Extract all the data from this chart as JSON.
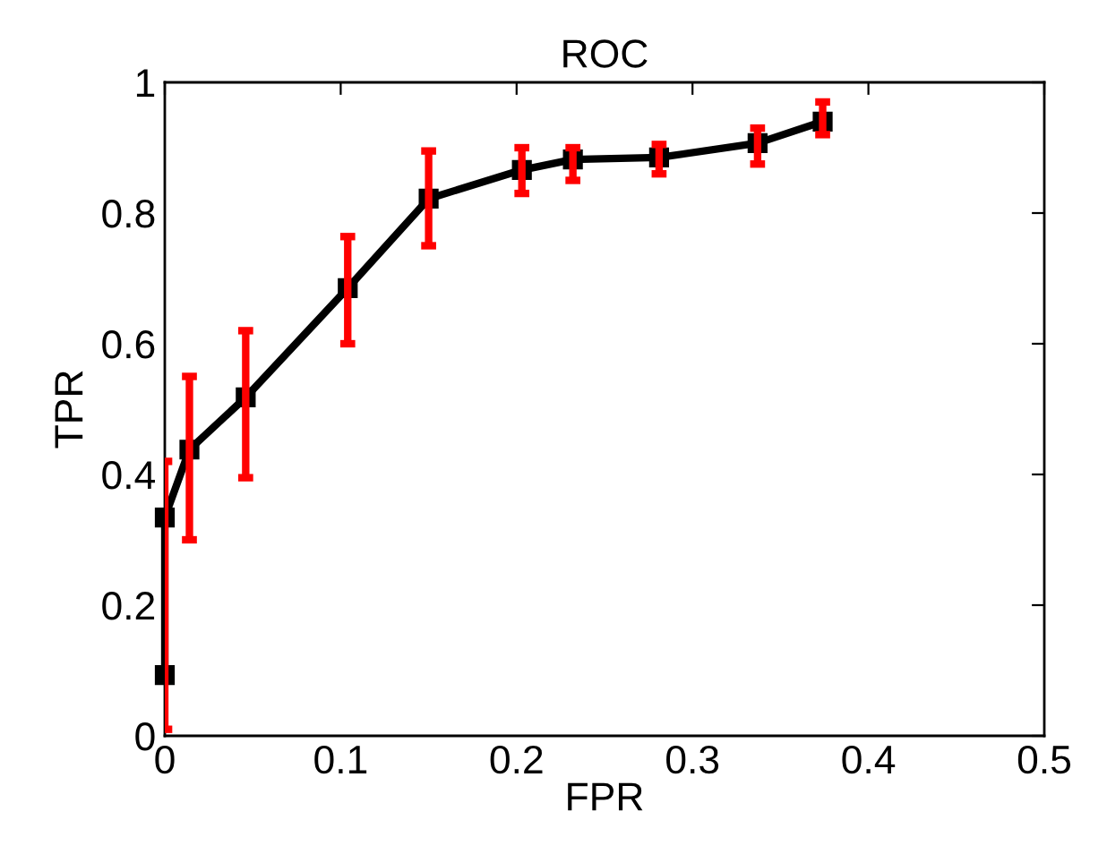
{
  "chart_data": {
    "type": "line",
    "title": "ROC",
    "xlabel": "FPR",
    "ylabel": "TPR",
    "x": [
      0,
      0,
      0.014,
      0.046,
      0.104,
      0.15,
      0.203,
      0.232,
      0.281,
      0.337,
      0.374
    ],
    "series": [
      {
        "color": "#000000",
        "values": [
          0.093,
          0.334,
          0.438,
          0.518,
          0.685,
          0.822,
          0.866,
          0.882,
          0.885,
          0.907,
          0.94
        ],
        "errors": [
          [
            0.01,
            0.42
          ],
          null,
          [
            0.3,
            0.55
          ],
          [
            0.395,
            0.62
          ],
          [
            0.6,
            0.764
          ],
          [
            0.75,
            0.895
          ],
          [
            0.83,
            0.9
          ],
          [
            0.85,
            0.9
          ],
          [
            0.86,
            0.905
          ],
          [
            0.875,
            0.93
          ],
          [
            0.92,
            0.97
          ]
        ]
      }
    ],
    "xlim": [
      0,
      0.5
    ],
    "xticks": [
      0,
      0.1,
      0.2,
      0.3,
      0.4,
      0.5
    ],
    "ylim": [
      0,
      1
    ],
    "yticks": [
      0,
      0.2,
      0.4,
      0.6,
      0.8,
      1
    ],
    "marker": "square",
    "line_style": "solid",
    "grid": false,
    "legend": false
  }
}
